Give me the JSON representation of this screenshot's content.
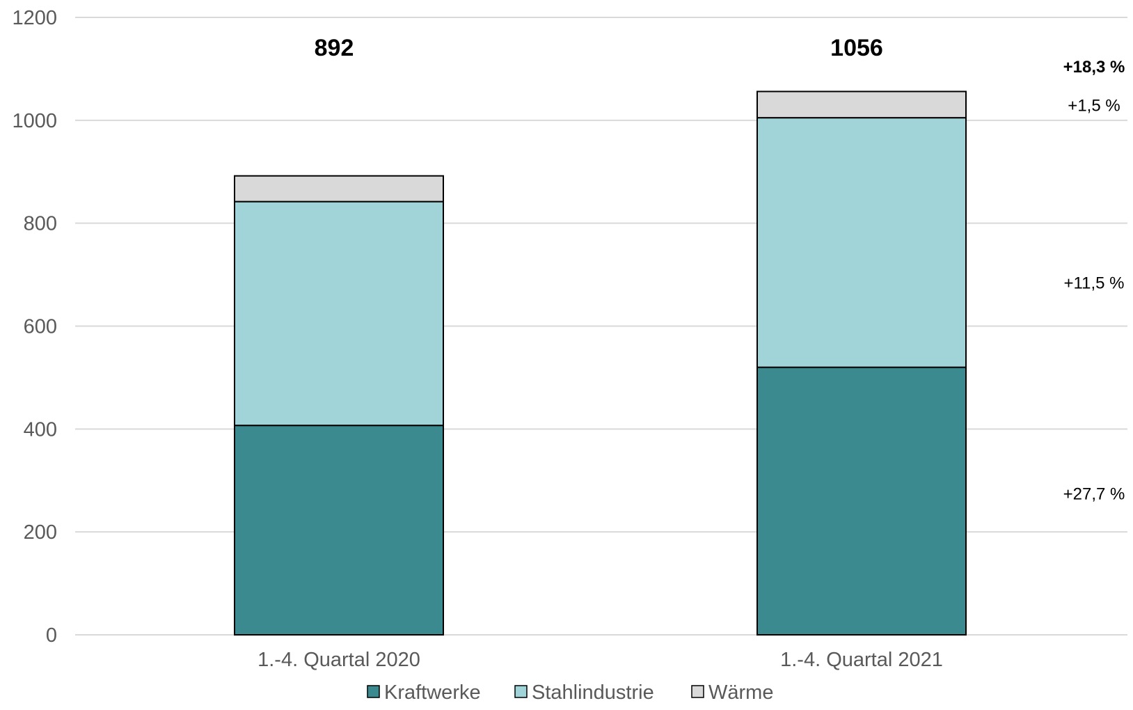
{
  "chart_data": {
    "type": "bar",
    "stacked": true,
    "categories": [
      "1.-4. Quartal 2020",
      "1.-4. Quartal 2021"
    ],
    "series": [
      {
        "name": "Kraftwerke",
        "color": "#3b8a8f",
        "values": [
          407,
          520
        ]
      },
      {
        "name": "Stahlindustrie",
        "color": "#a0d4d8",
        "values": [
          435,
          485
        ]
      },
      {
        "name": "Wärme",
        "color": "#d9d9d9",
        "values": [
          50,
          51
        ]
      }
    ],
    "totals": [
      "892",
      "1056"
    ],
    "ylim": [
      0,
      1200
    ],
    "yticks": [
      "0",
      "200",
      "400",
      "600",
      "800",
      "1000",
      "1200"
    ],
    "ytick_values": [
      0,
      200,
      400,
      600,
      800,
      1000,
      1200
    ],
    "grid": true,
    "legend_position": "bottom",
    "annotations": [
      {
        "text": "+18,3 %",
        "bold": true,
        "at_value": 1105
      },
      {
        "text": "+1,5 %",
        "bold": false,
        "at_value": 1030
      },
      {
        "text": "+11,5 %",
        "bold": false,
        "at_value": 685
      },
      {
        "text": "+27,7 %",
        "bold": false,
        "at_value": 275
      }
    ],
    "title": "",
    "xlabel": "",
    "ylabel": ""
  }
}
